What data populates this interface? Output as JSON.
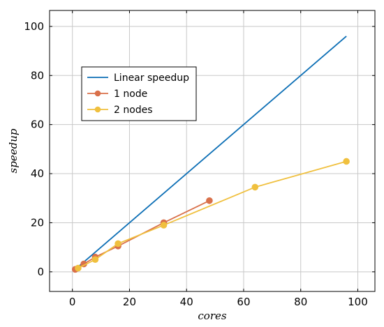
{
  "chart_data": {
    "type": "line",
    "title": "",
    "xlabel": "cores",
    "ylabel": "speedup",
    "xlim": [
      -8,
      106
    ],
    "ylim": [
      -8,
      106.5
    ],
    "xticks": [
      0,
      20,
      40,
      60,
      80,
      100
    ],
    "yticks": [
      0,
      20,
      40,
      60,
      80,
      100
    ],
    "grid": true,
    "legend_position": "upper-left",
    "series": [
      {
        "name": "Linear speedup",
        "color": "#0b6eb5",
        "markers": false,
        "x": [
          1,
          96
        ],
        "y": [
          1,
          96
        ]
      },
      {
        "name": "1 node",
        "color": "#d9704a",
        "markers": true,
        "x": [
          1,
          4,
          8,
          16,
          32,
          48
        ],
        "y": [
          1,
          3.2,
          6,
          10.5,
          20,
          29
        ]
      },
      {
        "name": "2 nodes",
        "color": "#f0c03e",
        "markers": true,
        "x": [
          2,
          8,
          16,
          32,
          64,
          96
        ],
        "y": [
          1.5,
          5,
          11.5,
          19,
          34.5,
          45
        ]
      }
    ]
  }
}
